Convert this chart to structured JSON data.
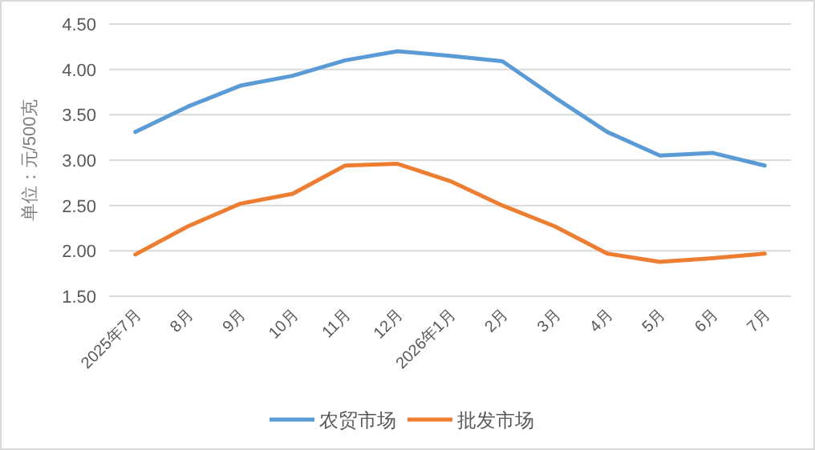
{
  "chart_data": {
    "type": "line",
    "ylabel": "单位：元/500克",
    "categories": [
      "2025年7月",
      "8月",
      "9月",
      "10月",
      "11月",
      "12月",
      "2026年1月",
      "2月",
      "3月",
      "4月",
      "5月",
      "6月",
      "7月"
    ],
    "series": [
      {
        "name": "农贸市场",
        "color": "#5b9bd5",
        "values": [
          3.31,
          3.59,
          3.82,
          3.93,
          4.1,
          4.2,
          4.15,
          4.09,
          3.69,
          3.31,
          3.05,
          3.08,
          2.94
        ]
      },
      {
        "name": "批发市场",
        "color": "#ed7d31",
        "values": [
          1.96,
          2.27,
          2.52,
          2.63,
          2.94,
          2.96,
          2.77,
          2.5,
          2.27,
          1.97,
          1.88,
          1.92,
          1.97
        ]
      }
    ],
    "ylim": [
      1.5,
      4.5
    ],
    "yticks": [
      {
        "value": 1.5,
        "label": "1.50"
      },
      {
        "value": 2,
        "label": "2.00"
      },
      {
        "value": 2.5,
        "label": "2.50"
      },
      {
        "value": 3,
        "label": "3.00"
      },
      {
        "value": 3.5,
        "label": "3.50"
      },
      {
        "value": 4,
        "label": "4.00"
      },
      {
        "value": 4.5,
        "label": "4.50"
      }
    ],
    "grid": "y",
    "legend": "bottom",
    "marker": "none",
    "line_style": "solid"
  }
}
